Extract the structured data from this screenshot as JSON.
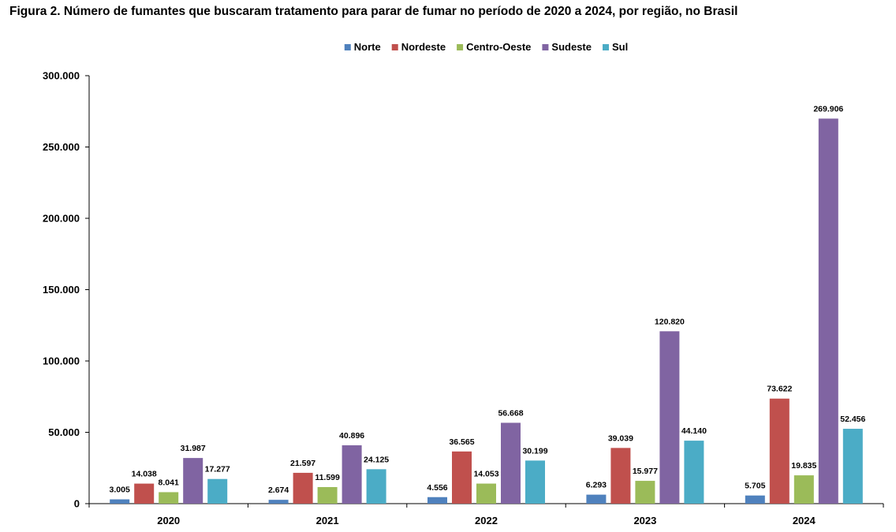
{
  "chart_data": {
    "type": "bar",
    "title": "Figura 2. Número de fumantes que buscaram tratamento para parar de fumar no período de 2020 a 2024, por região, no Brasil",
    "categories": [
      "2020",
      "2021",
      "2022",
      "2023",
      "2024"
    ],
    "series": [
      {
        "name": "Norte",
        "color": "#4f81bd",
        "values": [
          3005,
          2674,
          4556,
          6293,
          5705
        ],
        "labels": [
          "3.005",
          "2.674",
          "4.556",
          "6.293",
          "5.705"
        ]
      },
      {
        "name": "Nordeste",
        "color": "#c0504d",
        "values": [
          14038,
          21597,
          36565,
          39039,
          73622
        ],
        "labels": [
          "14.038",
          "21.597",
          "36.565",
          "39.039",
          "73.622"
        ]
      },
      {
        "name": "Centro-Oeste",
        "color": "#9bbb59",
        "values": [
          8041,
          11599,
          14053,
          15977,
          19835
        ],
        "labels": [
          "8.041",
          "11.599",
          "14.053",
          "15.977",
          "19.835"
        ]
      },
      {
        "name": "Sudeste",
        "color": "#8064a2",
        "values": [
          31987,
          40896,
          56668,
          120820,
          269906
        ],
        "labels": [
          "31.987",
          "40.896",
          "56.668",
          "120.820",
          "269.906"
        ]
      },
      {
        "name": "Sul",
        "color": "#4bacc6",
        "values": [
          17277,
          24125,
          30199,
          44140,
          52456
        ],
        "labels": [
          "17.277",
          "24.125",
          "30.199",
          "44.140",
          "52.456"
        ]
      }
    ],
    "xlabel": "",
    "ylabel": "",
    "ylim": [
      0,
      300000
    ],
    "yticks": [
      0,
      50000,
      100000,
      150000,
      200000,
      250000,
      300000
    ],
    "ytick_labels": [
      "0",
      "50.000",
      "100.000",
      "150.000",
      "200.000",
      "250.000",
      "300.000"
    ],
    "legend_position": "top-center",
    "grid": false
  }
}
